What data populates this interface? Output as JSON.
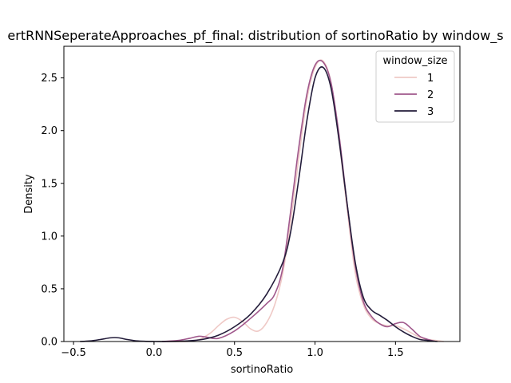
{
  "chart_data": {
    "type": "line",
    "title": "ertRNNSeperateApproaches_pf_final: distribution of sortinoRatio by window_s",
    "xlabel": "sortinoRatio",
    "ylabel": "Density",
    "xlim": [
      -0.56,
      1.9
    ],
    "ylim": [
      0,
      2.8
    ],
    "xticks": [
      -0.5,
      0.0,
      0.5,
      1.0,
      1.5
    ],
    "xtick_labels": [
      "−0.5",
      "0.0",
      "0.5",
      "1.0",
      "1.5"
    ],
    "yticks": [
      0.0,
      0.5,
      1.0,
      1.5,
      2.0,
      2.5
    ],
    "ytick_labels": [
      "0.0",
      "0.5",
      "1.0",
      "1.5",
      "2.0",
      "2.5"
    ],
    "grid": false,
    "legend": {
      "title": "window_size",
      "placement": "top-right"
    },
    "series": [
      {
        "name": "1",
        "color": "#efc9c6",
        "x": [
          0.08,
          0.2,
          0.28,
          0.35,
          0.4,
          0.45,
          0.5,
          0.55,
          0.6,
          0.65,
          0.7,
          0.75,
          0.8,
          0.85,
          0.9,
          0.95,
          1.0,
          1.05,
          1.1,
          1.15,
          1.2,
          1.25,
          1.3,
          1.35,
          1.4,
          1.45,
          1.5,
          1.55,
          1.6,
          1.65,
          1.7,
          1.75,
          1.8
        ],
        "y": [
          0.0,
          0.0,
          0.02,
          0.08,
          0.15,
          0.21,
          0.23,
          0.19,
          0.12,
          0.1,
          0.18,
          0.35,
          0.65,
          1.15,
          1.75,
          2.3,
          2.6,
          2.66,
          2.45,
          1.9,
          1.25,
          0.65,
          0.35,
          0.22,
          0.17,
          0.15,
          0.15,
          0.12,
          0.08,
          0.04,
          0.02,
          0.01,
          0.0
        ]
      },
      {
        "name": "2",
        "color": "#a0588c",
        "x": [
          0.05,
          0.15,
          0.22,
          0.28,
          0.33,
          0.4,
          0.5,
          0.6,
          0.7,
          0.75,
          0.8,
          0.85,
          0.9,
          0.95,
          1.0,
          1.05,
          1.1,
          1.15,
          1.2,
          1.25,
          1.3,
          1.35,
          1.4,
          1.45,
          1.5,
          1.55,
          1.6,
          1.65,
          1.7,
          1.75
        ],
        "y": [
          0.0,
          0.01,
          0.03,
          0.05,
          0.04,
          0.03,
          0.1,
          0.22,
          0.36,
          0.45,
          0.7,
          1.25,
          1.85,
          2.35,
          2.62,
          2.65,
          2.45,
          1.95,
          1.3,
          0.72,
          0.38,
          0.24,
          0.17,
          0.14,
          0.17,
          0.18,
          0.12,
          0.05,
          0.02,
          0.0
        ]
      },
      {
        "name": "3",
        "color": "#231c3a",
        "x": [
          -0.46,
          -0.4,
          -0.33,
          -0.27,
          -0.22,
          -0.17,
          -0.1,
          0.0,
          0.1,
          0.2,
          0.3,
          0.4,
          0.5,
          0.6,
          0.7,
          0.8,
          0.85,
          0.9,
          0.95,
          1.0,
          1.05,
          1.1,
          1.15,
          1.2,
          1.25,
          1.3,
          1.35,
          1.4,
          1.45,
          1.5,
          1.55,
          1.6,
          1.65,
          1.7,
          1.76
        ],
        "y": [
          0.0,
          0.005,
          0.02,
          0.035,
          0.035,
          0.02,
          0.005,
          0.0,
          0.0,
          0.005,
          0.02,
          0.06,
          0.14,
          0.26,
          0.45,
          0.75,
          1.05,
          1.55,
          2.1,
          2.5,
          2.6,
          2.4,
          1.9,
          1.3,
          0.75,
          0.42,
          0.3,
          0.25,
          0.2,
          0.14,
          0.09,
          0.05,
          0.02,
          0.01,
          0.0
        ]
      }
    ]
  }
}
